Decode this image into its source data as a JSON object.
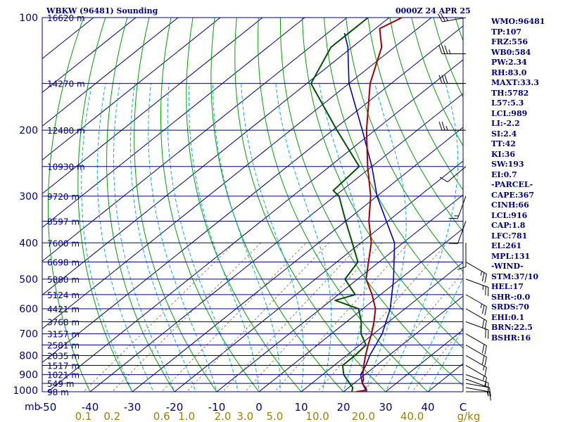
{
  "header": {
    "station": "WBKW (96481) Sounding",
    "time": "0000Z 24 APR 25"
  },
  "colors": {
    "background": "#ffffff",
    "isobar": "#000080",
    "isotherm": "#000080",
    "dry_adiabat": "#00a000",
    "moist_adiabat": "#00b0d0",
    "mixing_ratio": "#a08060",
    "temperature": "#a00000",
    "dewpoint": "#005000",
    "parcel": "#0000c0",
    "wind_barb": "#000000",
    "axis_text": "#000080",
    "mixing_text": "#a08000"
  },
  "stats": [
    "WMO:96481",
    "TP:107",
    "FRZ:556",
    "WB0:584",
    "PW:2.34",
    "RH:83.0",
    "MAXT:33.3",
    "TH:5782",
    "L57:5.3",
    "LCL:989",
    "LI:-2.2",
    "SI:2.4",
    "TT:42",
    "KI:36",
    "SW:193",
    "EI:0.7",
    "-PARCEL-",
    "CAPE:367",
    "CINH:66",
    "LCL:916",
    "CAP:1.8",
    "LFC:781",
    "EL:261",
    "MPL:131",
    "-WIND-",
    "STM:37/10",
    "HEL:17",
    "SHR-:0.0",
    "SRDS:70",
    "EHI:0.1",
    "BRN:22.5",
    "BSHR:16"
  ],
  "chart_data": {
    "type": "skew-t",
    "title": "WBKW (96481) Sounding",
    "subtitle": "0000Z 24 APR 25",
    "y_axis_unit": "mb",
    "x_axis_unit": "C",
    "mixing_ratio_unit": "g/kg",
    "pressure_labels": [
      "100",
      "200",
      "300",
      "400",
      "500",
      "600",
      "700",
      "800",
      "900",
      "1000"
    ],
    "pressure_ticks": [
      100,
      200,
      300,
      400,
      500,
      600,
      700,
      800,
      900,
      1000
    ],
    "temperature_labels": [
      "-50",
      "-40",
      "-30",
      "-20",
      "-10",
      "0",
      "10",
      "20",
      "30",
      "40"
    ],
    "temperature_ticks": [
      -50,
      -40,
      -30,
      -20,
      -10,
      0,
      10,
      20,
      30,
      40
    ],
    "mixing_ratio_labels": [
      "0.1",
      "0.2",
      "0.6",
      "1.0",
      "2.0",
      "3.0",
      "5.0",
      "10.0",
      "20.0",
      "40.0"
    ],
    "mixing_ratio_values": [
      0.1,
      0.2,
      0.6,
      1.0,
      2.0,
      3.0,
      5.0,
      10.0,
      20.0,
      40.0
    ],
    "height_levels": [
      {
        "p": 100,
        "label": "16620 m"
      },
      {
        "p": 150,
        "label": "14270 m"
      },
      {
        "p": 200,
        "label": "12480 m"
      },
      {
        "p": 250,
        "label": "10930 m"
      },
      {
        "p": 300,
        "label": "9720 m"
      },
      {
        "p": 350,
        "label": "8597 m"
      },
      {
        "p": 400,
        "label": "7600 m"
      },
      {
        "p": 450,
        "label": "6698 m"
      },
      {
        "p": 500,
        "label": "5880 m"
      },
      {
        "p": 550,
        "label": "5124 m"
      },
      {
        "p": 600,
        "label": "4421 m"
      },
      {
        "p": 650,
        "label": "3768 m"
      },
      {
        "p": 700,
        "label": "3157 m"
      },
      {
        "p": 750,
        "label": "2581 m"
      },
      {
        "p": 800,
        "label": "2035 m"
      },
      {
        "p": 850,
        "label": "1517 m"
      },
      {
        "p": 900,
        "label": "1021 m"
      },
      {
        "p": 950,
        "label": "549 m"
      },
      {
        "p": 1000,
        "label": "98 m"
      }
    ],
    "temperature_profile": [
      {
        "p": 1000,
        "t": 23.0
      },
      {
        "p": 990,
        "t": 25.0
      },
      {
        "p": 975,
        "t": 24.0
      },
      {
        "p": 950,
        "t": 22.0
      },
      {
        "p": 925,
        "t": 21.0
      },
      {
        "p": 900,
        "t": 19.5
      },
      {
        "p": 850,
        "t": 17.0
      },
      {
        "p": 800,
        "t": 14.5
      },
      {
        "p": 750,
        "t": 12.0
      },
      {
        "p": 700,
        "t": 9.5
      },
      {
        "p": 650,
        "t": 6.5
      },
      {
        "p": 600,
        "t": 3.0
      },
      {
        "p": 550,
        "t": -2.0
      },
      {
        "p": 500,
        "t": -8.0
      },
      {
        "p": 450,
        "t": -12.5
      },
      {
        "p": 400,
        "t": -17.5
      },
      {
        "p": 350,
        "t": -24.5
      },
      {
        "p": 300,
        "t": -31.5
      },
      {
        "p": 250,
        "t": -41.0
      },
      {
        "p": 200,
        "t": -52.0
      },
      {
        "p": 150,
        "t": -65.0
      },
      {
        "p": 120,
        "t": -73.0
      },
      {
        "p": 107,
        "t": -79.0
      },
      {
        "p": 100,
        "t": -77.0
      }
    ],
    "dewpoint_profile": [
      {
        "p": 1000,
        "td": 22.0
      },
      {
        "p": 975,
        "td": 21.0
      },
      {
        "p": 950,
        "td": 19.0
      },
      {
        "p": 900,
        "td": 15.0
      },
      {
        "p": 850,
        "td": 12.0
      },
      {
        "p": 800,
        "td": 12.0
      },
      {
        "p": 750,
        "td": 11.5
      },
      {
        "p": 700,
        "td": 7.0
      },
      {
        "p": 650,
        "td": 3.5
      },
      {
        "p": 600,
        "td": -1.0
      },
      {
        "p": 570,
        "td": -9.0
      },
      {
        "p": 550,
        "td": -6.0
      },
      {
        "p": 500,
        "td": -13.0
      },
      {
        "p": 450,
        "td": -15.0
      },
      {
        "p": 400,
        "td": -22.0
      },
      {
        "p": 350,
        "td": -30.0
      },
      {
        "p": 300,
        "td": -39.0
      },
      {
        "p": 290,
        "td": -42.0
      },
      {
        "p": 250,
        "td": -43.0
      },
      {
        "p": 200,
        "td": -59.0
      },
      {
        "p": 150,
        "td": -79.0
      },
      {
        "p": 120,
        "td": -85.0
      },
      {
        "p": 100,
        "td": -85.0
      }
    ],
    "parcel_profile": [
      {
        "p": 1000,
        "t": 25.5
      },
      {
        "p": 950,
        "t": 22.0
      },
      {
        "p": 900,
        "t": 19.0
      },
      {
        "p": 850,
        "t": 17.5
      },
      {
        "p": 800,
        "t": 15.5
      },
      {
        "p": 700,
        "t": 12.0
      },
      {
        "p": 600,
        "t": 6.5
      },
      {
        "p": 500,
        "t": -1.5
      },
      {
        "p": 400,
        "t": -12.0
      },
      {
        "p": 300,
        "t": -30.0
      },
      {
        "p": 250,
        "t": -40.0
      },
      {
        "p": 200,
        "t": -53.0
      },
      {
        "p": 150,
        "t": -70.0
      },
      {
        "p": 120,
        "t": -81.0
      },
      {
        "p": 110,
        "t": -86.0
      }
    ],
    "wind_barbs": [
      {
        "p": 1000,
        "dir": 90,
        "spd": 5
      },
      {
        "p": 975,
        "dir": 100,
        "spd": 10
      },
      {
        "p": 950,
        "dir": 100,
        "spd": 10
      },
      {
        "p": 925,
        "dir": 110,
        "spd": 10
      },
      {
        "p": 900,
        "dir": 110,
        "spd": 15
      },
      {
        "p": 850,
        "dir": 120,
        "spd": 15
      },
      {
        "p": 800,
        "dir": 120,
        "spd": 15
      },
      {
        "p": 750,
        "dir": 120,
        "spd": 20
      },
      {
        "p": 700,
        "dir": 120,
        "spd": 20
      },
      {
        "p": 650,
        "dir": 110,
        "spd": 20
      },
      {
        "p": 600,
        "dir": 120,
        "spd": 20
      },
      {
        "p": 550,
        "dir": 120,
        "spd": 25
      },
      {
        "p": 500,
        "dir": 110,
        "spd": 25
      },
      {
        "p": 450,
        "dir": 120,
        "spd": 25
      },
      {
        "p": 400,
        "dir": 180,
        "spd": 10
      },
      {
        "p": 350,
        "dir": 200,
        "spd": 10
      },
      {
        "p": 300,
        "dir": 200,
        "spd": 15
      },
      {
        "p": 250,
        "dir": 230,
        "spd": 10
      },
      {
        "p": 200,
        "dir": 270,
        "spd": 25
      },
      {
        "p": 150,
        "dir": 270,
        "spd": 30
      },
      {
        "p": 125,
        "dir": 270,
        "spd": 35
      },
      {
        "p": 100,
        "dir": 260,
        "spd": 25
      }
    ]
  }
}
